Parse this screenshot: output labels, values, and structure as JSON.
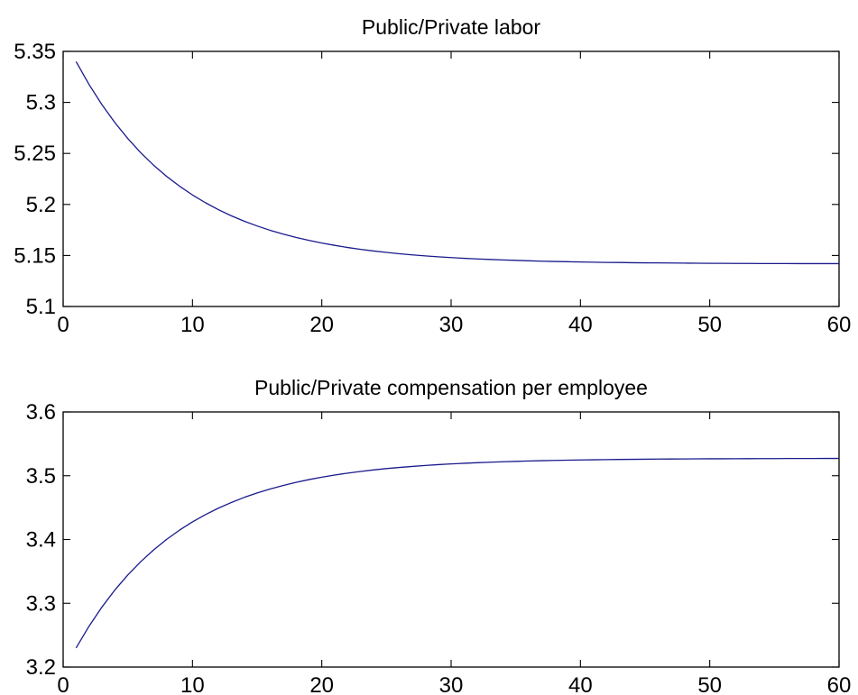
{
  "chart_data": [
    {
      "type": "line",
      "title": "Public/Private labor",
      "xlabel": "",
      "ylabel": "",
      "xlim": [
        0,
        60
      ],
      "ylim": [
        5.1,
        5.35
      ],
      "xticks": [
        0,
        10,
        20,
        30,
        40,
        50,
        60
      ],
      "xtick_labels": [
        "0",
        "10",
        "20",
        "30",
        "40",
        "50",
        "60"
      ],
      "yticks": [
        5.1,
        5.15,
        5.2,
        5.25,
        5.3,
        5.35
      ],
      "ytick_labels": [
        "5.1",
        "5.15",
        "5.2",
        "5.25",
        "5.3",
        "5.35"
      ],
      "grid": false,
      "series": [
        {
          "color": "#1a1a8c",
          "x": [
            1,
            2,
            3,
            4,
            5,
            6,
            7,
            8,
            9,
            10,
            11,
            12,
            13,
            14,
            15,
            16,
            17,
            18,
            19,
            20,
            21,
            22,
            23,
            24,
            25,
            26,
            27,
            28,
            29,
            30,
            31,
            32,
            33,
            34,
            35,
            36,
            37,
            38,
            39,
            40,
            41,
            42,
            43,
            44,
            45,
            46,
            47,
            48,
            49,
            50,
            51,
            52,
            53,
            54,
            55,
            56,
            57,
            58,
            59,
            60
          ],
          "values": [
            5.34,
            5.3176,
            5.2978,
            5.2802,
            5.2646,
            5.2507,
            5.2384,
            5.2275,
            5.2179,
            5.2093,
            5.2017,
            5.1949,
            5.1889,
            5.1836,
            5.1789,
            5.1747,
            5.171,
            5.1677,
            5.1648,
            5.1622,
            5.1599,
            5.1578,
            5.156,
            5.1544,
            5.153,
            5.1517,
            5.1506,
            5.1496,
            5.1487,
            5.1479,
            5.1472,
            5.1466,
            5.1461,
            5.1456,
            5.1452,
            5.1448,
            5.1444,
            5.1441,
            5.1439,
            5.1436,
            5.1434,
            5.1432,
            5.1431,
            5.1429,
            5.1428,
            5.1427,
            5.1426,
            5.1425,
            5.1424,
            5.1423,
            5.1423,
            5.1422,
            5.1422,
            5.1421,
            5.1421,
            5.1421,
            5.142,
            5.142,
            5.142,
            5.142
          ]
        }
      ]
    },
    {
      "type": "line",
      "title": "Public/Private compensation per employee",
      "xlabel": "",
      "ylabel": "",
      "xlim": [
        0,
        60
      ],
      "ylim": [
        3.2,
        3.6
      ],
      "xticks": [
        0,
        10,
        20,
        30,
        40,
        50,
        60
      ],
      "xtick_labels": [
        "0",
        "10",
        "20",
        "30",
        "40",
        "50",
        "60"
      ],
      "yticks": [
        3.2,
        3.3,
        3.4,
        3.5,
        3.6
      ],
      "ytick_labels": [
        "3.2",
        "3.3",
        "3.4",
        "3.5",
        "3.6"
      ],
      "grid": false,
      "series": [
        {
          "color": "#1a1a8c",
          "x": [
            1,
            2,
            3,
            4,
            5,
            6,
            7,
            8,
            9,
            10,
            11,
            12,
            13,
            14,
            15,
            16,
            17,
            18,
            19,
            20,
            21,
            22,
            23,
            24,
            25,
            26,
            27,
            28,
            29,
            30,
            31,
            32,
            33,
            34,
            35,
            36,
            37,
            38,
            39,
            40,
            41,
            42,
            43,
            44,
            45,
            46,
            47,
            48,
            49,
            50,
            51,
            52,
            53,
            54,
            55,
            56,
            57,
            58,
            59,
            60
          ],
          "values": [
            3.23,
            3.264,
            3.2941,
            3.3208,
            3.3444,
            3.3653,
            3.3838,
            3.4002,
            3.4147,
            3.4276,
            3.439,
            3.4491,
            3.458,
            3.466,
            3.473,
            3.4792,
            3.4847,
            3.4896,
            3.4939,
            3.4977,
            3.5011,
            3.5041,
            3.5067,
            3.5091,
            3.5112,
            3.513,
            3.5146,
            3.5161,
            3.5174,
            3.5185,
            3.5195,
            3.5204,
            3.5212,
            3.5219,
            3.5225,
            3.5231,
            3.5236,
            3.524,
            3.5244,
            3.5247,
            3.525,
            3.5253,
            3.5255,
            3.5257,
            3.5259,
            3.5261,
            3.5262,
            3.5263,
            3.5265,
            3.5266,
            3.5266,
            3.5267,
            3.5268,
            3.5269,
            3.5269,
            3.527,
            3.527,
            3.527,
            3.5271,
            3.5271
          ]
        }
      ]
    }
  ]
}
